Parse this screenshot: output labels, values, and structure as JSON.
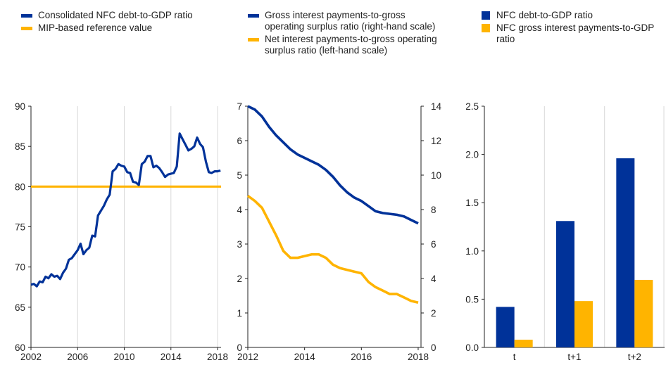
{
  "colors": {
    "navy": "#003299",
    "yellow": "#FFB400",
    "axis": "#222222",
    "grid": "#d9d9d9"
  },
  "chart_data": [
    {
      "type": "line",
      "legend": [
        {
          "label": "Consolidated NFC debt-to-GDP ratio",
          "color": "#003299"
        },
        {
          "label": "MIP-based reference value",
          "color": "#FFB400"
        }
      ],
      "ylim": [
        60,
        90
      ],
      "yticks": [
        60,
        65,
        70,
        75,
        80,
        85,
        90
      ],
      "xlim": [
        2002,
        2018.3
      ],
      "xticks": [
        2002,
        2006,
        2010,
        2014,
        2018
      ],
      "grid": "vertical",
      "series": [
        {
          "name": "Consolidated NFC debt-to-GDP ratio",
          "color": "#003299",
          "x": [
            2002.0,
            2002.25,
            2002.5,
            2002.75,
            2003.0,
            2003.25,
            2003.5,
            2003.75,
            2004.0,
            2004.25,
            2004.5,
            2004.75,
            2005.0,
            2005.25,
            2005.5,
            2005.75,
            2006.0,
            2006.25,
            2006.5,
            2006.75,
            2007.0,
            2007.25,
            2007.5,
            2007.75,
            2008.0,
            2008.25,
            2008.5,
            2008.75,
            2009.0,
            2009.25,
            2009.5,
            2009.75,
            2010.0,
            2010.25,
            2010.5,
            2010.75,
            2011.0,
            2011.25,
            2011.5,
            2011.75,
            2012.0,
            2012.25,
            2012.5,
            2012.75,
            2013.0,
            2013.25,
            2013.5,
            2013.75,
            2014.0,
            2014.25,
            2014.5,
            2014.75,
            2015.0,
            2015.25,
            2015.5,
            2015.75,
            2016.0,
            2016.25,
            2016.5,
            2016.75,
            2017.0,
            2017.25,
            2017.5,
            2017.75,
            2018.0,
            2018.25
          ],
          "values": [
            67.8,
            67.9,
            67.6,
            68.2,
            68.1,
            68.8,
            68.6,
            69.1,
            68.8,
            68.9,
            68.5,
            69.3,
            69.8,
            70.9,
            71.1,
            71.6,
            72.1,
            72.9,
            71.6,
            72.1,
            72.4,
            73.9,
            73.8,
            76.4,
            77.0,
            77.6,
            78.4,
            79.0,
            81.9,
            82.2,
            82.8,
            82.6,
            82.5,
            81.8,
            81.7,
            80.6,
            80.5,
            80.2,
            82.8,
            83.1,
            83.8,
            83.8,
            82.4,
            82.6,
            82.3,
            81.8,
            81.2,
            81.5,
            81.6,
            81.7,
            82.5,
            86.6,
            85.9,
            85.2,
            84.5,
            84.7,
            85.0,
            86.1,
            85.3,
            84.9,
            83.1,
            81.8,
            81.7,
            81.9,
            81.9,
            82.0
          ]
        },
        {
          "name": "MIP-based reference value",
          "color": "#FFB400",
          "x": [
            2002,
            2018.3
          ],
          "values": [
            80,
            80
          ]
        }
      ]
    },
    {
      "type": "line",
      "legend": [
        {
          "label": "Gross interest payments-to-gross operating surplus ratio (right-hand scale)",
          "color": "#003299"
        },
        {
          "label": "Net interest payments-to-gross operating surplus ratio (left-hand scale)",
          "color": "#FFB400"
        }
      ],
      "ylim_left": [
        0,
        7
      ],
      "yticks_left": [
        0,
        1,
        2,
        3,
        4,
        5,
        6,
        7
      ],
      "ylim_right": [
        0,
        14
      ],
      "yticks_right": [
        0,
        2,
        4,
        6,
        8,
        10,
        12,
        14
      ],
      "xlim": [
        2012,
        2018.1
      ],
      "xticks": [
        2012,
        2014,
        2016,
        2018
      ],
      "series": [
        {
          "name": "Gross interest payments-to-gross operating surplus ratio",
          "axis": "right",
          "color": "#003299",
          "x": [
            2012.0,
            2012.25,
            2012.5,
            2012.75,
            2013.0,
            2013.25,
            2013.5,
            2013.75,
            2014.0,
            2014.25,
            2014.5,
            2014.75,
            2015.0,
            2015.25,
            2015.5,
            2015.75,
            2016.0,
            2016.25,
            2016.5,
            2016.75,
            2017.0,
            2017.25,
            2017.5,
            2017.75,
            2018.0
          ],
          "values": [
            14.0,
            13.8,
            13.4,
            12.8,
            12.3,
            11.9,
            11.5,
            11.2,
            11.0,
            10.8,
            10.6,
            10.3,
            9.9,
            9.4,
            9.0,
            8.7,
            8.5,
            8.2,
            7.9,
            7.8,
            7.75,
            7.7,
            7.6,
            7.4,
            7.2
          ]
        },
        {
          "name": "Net interest payments-to-gross operating surplus ratio",
          "axis": "left",
          "color": "#FFB400",
          "x": [
            2012.0,
            2012.25,
            2012.5,
            2012.75,
            2013.0,
            2013.25,
            2013.5,
            2013.75,
            2014.0,
            2014.25,
            2014.5,
            2014.75,
            2015.0,
            2015.25,
            2015.5,
            2015.75,
            2016.0,
            2016.25,
            2016.5,
            2016.75,
            2017.0,
            2017.25,
            2017.5,
            2017.75,
            2018.0
          ],
          "values": [
            4.4,
            4.25,
            4.05,
            3.65,
            3.25,
            2.8,
            2.6,
            2.6,
            2.65,
            2.7,
            2.7,
            2.6,
            2.4,
            2.3,
            2.25,
            2.2,
            2.15,
            1.9,
            1.75,
            1.65,
            1.55,
            1.55,
            1.45,
            1.35,
            1.3
          ]
        }
      ]
    },
    {
      "type": "bar",
      "legend": [
        {
          "label": "NFC debt-to-GDP ratio",
          "color": "#003299"
        },
        {
          "label": "NFC gross interest payments-to-GDP ratio",
          "color": "#FFB400"
        }
      ],
      "categories": [
        "t",
        "t+1",
        "t+2"
      ],
      "ylim": [
        0,
        2.5
      ],
      "yticks": [
        "0.0",
        "0.5",
        "1.0",
        "1.5",
        "2.0",
        "2.5"
      ],
      "grid": "vertical",
      "series": [
        {
          "name": "NFC debt-to-GDP ratio",
          "color": "#003299",
          "values": [
            0.42,
            1.31,
            1.96
          ]
        },
        {
          "name": "NFC gross interest payments-to-GDP ratio",
          "color": "#FFB400",
          "values": [
            0.08,
            0.48,
            0.7
          ]
        }
      ]
    }
  ]
}
